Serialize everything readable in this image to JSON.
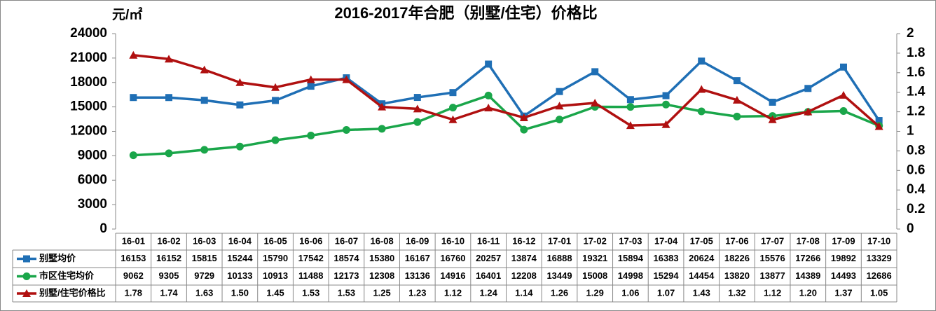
{
  "chart_data": {
    "type": "line",
    "title": "2016-2017年合肥（别墅/住宅）价格比",
    "y_label": "元/㎡",
    "categories": [
      "16-01",
      "16-02",
      "16-03",
      "16-04",
      "16-05",
      "16-06",
      "16-07",
      "16-08",
      "16-09",
      "16-10",
      "16-11",
      "16-12",
      "17-01",
      "17-02",
      "17-03",
      "17-04",
      "17-05",
      "17-06",
      "17-07",
      "17-08",
      "17-09",
      "17-10"
    ],
    "series": [
      {
        "name": "别墅均价",
        "color": "#1f6fb5",
        "marker": "square",
        "values": [
          16153,
          16152,
          15815,
          15244,
          15790,
          17542,
          18574,
          15380,
          16167,
          16760,
          20257,
          13874,
          16888,
          19321,
          15894,
          16383,
          20624,
          18226,
          15576,
          17266,
          19892,
          13329
        ]
      },
      {
        "name": "市区住宅均价",
        "color": "#1aa64a",
        "marker": "circle",
        "values": [
          9062,
          9305,
          9729,
          10133,
          10913,
          11488,
          12173,
          12308,
          13136,
          14916,
          16401,
          12208,
          13449,
          15008,
          14998,
          15294,
          14454,
          13820,
          13877,
          14389,
          14493,
          12686
        ]
      },
      {
        "name": "别墅/住宅价格比",
        "color": "#b01010",
        "marker": "triangle",
        "axis": "y2",
        "values": [
          1.78,
          1.74,
          1.63,
          1.5,
          1.45,
          1.53,
          1.53,
          1.25,
          1.23,
          1.12,
          1.24,
          1.14,
          1.26,
          1.29,
          1.06,
          1.07,
          1.43,
          1.32,
          1.12,
          1.2,
          1.37,
          1.05
        ],
        "value_labels": [
          "1.78",
          "1.74",
          "1.63",
          "1.50",
          "1.45",
          "1.53",
          "1.53",
          "1.25",
          "1.23",
          "1.12",
          "1.24",
          "1.14",
          "1.26",
          "1.29",
          "1.06",
          "1.07",
          "1.43",
          "1.32",
          "1.12",
          "1.20",
          "1.37",
          "1.05"
        ]
      }
    ],
    "ylim": [
      0,
      24000
    ],
    "yticks": [
      0,
      3000,
      6000,
      9000,
      12000,
      15000,
      18000,
      21000,
      24000
    ],
    "y2lim": [
      0,
      2
    ],
    "y2ticks": [
      0,
      0.2,
      0.4,
      0.6,
      0.8,
      1,
      1.2,
      1.4,
      1.6,
      1.8,
      2
    ],
    "grid": false
  }
}
